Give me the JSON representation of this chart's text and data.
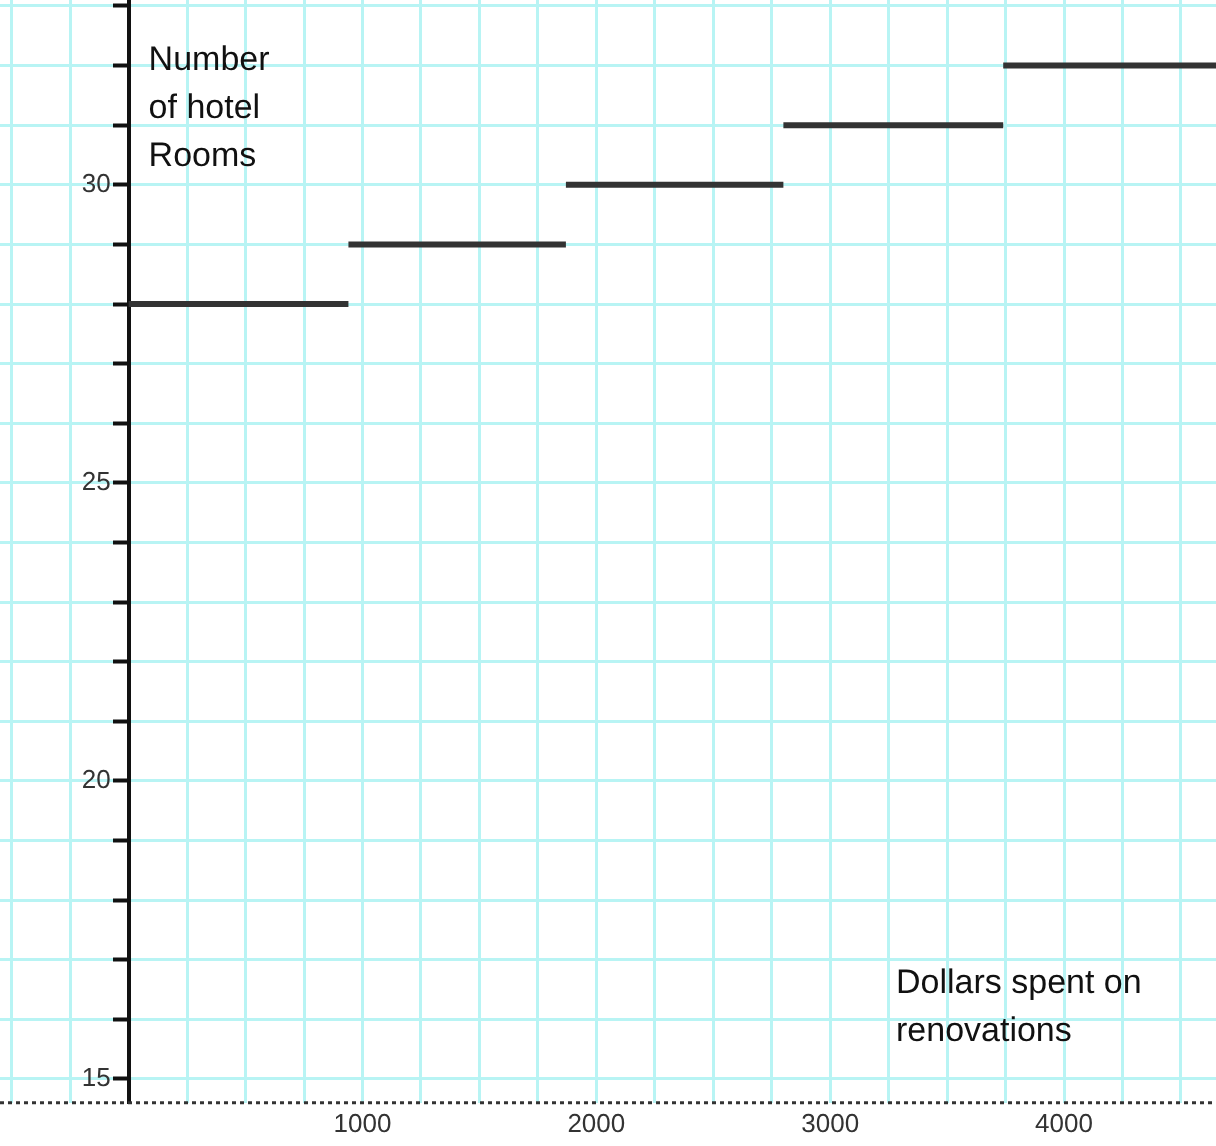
{
  "chart_data": {
    "type": "line",
    "xlabel": "Dollars spent on renovations",
    "ylabel": "Number of hotel Rooms",
    "series": [
      {
        "color": "#333333",
        "x": [
          0,
          940
        ],
        "values": [
          28,
          28
        ]
      },
      {
        "color": "#333333",
        "x": [
          940,
          1870
        ],
        "values": [
          29,
          29
        ]
      },
      {
        "color": "#333333",
        "x": [
          1870,
          2800
        ],
        "values": [
          30,
          30
        ]
      },
      {
        "color": "#333333",
        "x": [
          2800,
          3740
        ],
        "values": [
          31,
          31
        ]
      },
      {
        "color": "#333333",
        "x": [
          3740,
          4650
        ],
        "values": [
          32,
          32
        ]
      }
    ],
    "xlim": [
      -550,
      4650
    ],
    "ylim": [
      14.6,
      33.1
    ],
    "xticks": [
      {
        "value": -500,
        "label": null
      },
      {
        "value": -250,
        "label": null
      },
      {
        "value": 0,
        "label": null
      },
      {
        "value": 250,
        "label": null
      },
      {
        "value": 500,
        "label": null
      },
      {
        "value": 750,
        "label": null
      },
      1000,
      {
        "value": 1250,
        "label": null
      },
      {
        "value": 1500,
        "label": null
      },
      {
        "value": 1750,
        "label": null
      },
      2000,
      {
        "value": 2250,
        "label": null
      },
      {
        "value": 2500,
        "label": null
      },
      {
        "value": 2750,
        "label": null
      },
      3000,
      {
        "value": 3250,
        "label": null
      },
      {
        "value": 3500,
        "label": null
      },
      {
        "value": 3750,
        "label": null
      },
      4000,
      {
        "value": 4250,
        "label": null
      },
      {
        "value": 4500,
        "label": null
      }
    ],
    "yticks": [
      15,
      {
        "value": 16,
        "label": null
      },
      {
        "value": 17,
        "label": null
      },
      {
        "value": 18,
        "label": null
      },
      {
        "value": 19,
        "label": null
      },
      20,
      {
        "value": 21,
        "label": null
      },
      {
        "value": 22,
        "label": null
      },
      {
        "value": 23,
        "label": null
      },
      {
        "value": 24,
        "label": null
      },
      25,
      {
        "value": 26,
        "label": null
      },
      {
        "value": 27,
        "label": null
      },
      {
        "value": 28,
        "label": null
      },
      {
        "value": 29,
        "label": null
      },
      30,
      {
        "value": 31,
        "label": null
      },
      {
        "value": 32,
        "label": null
      },
      {
        "value": 33,
        "label": null
      }
    ],
    "grid": true,
    "legend": false,
    "marker": "none",
    "line_style": "solid"
  }
}
